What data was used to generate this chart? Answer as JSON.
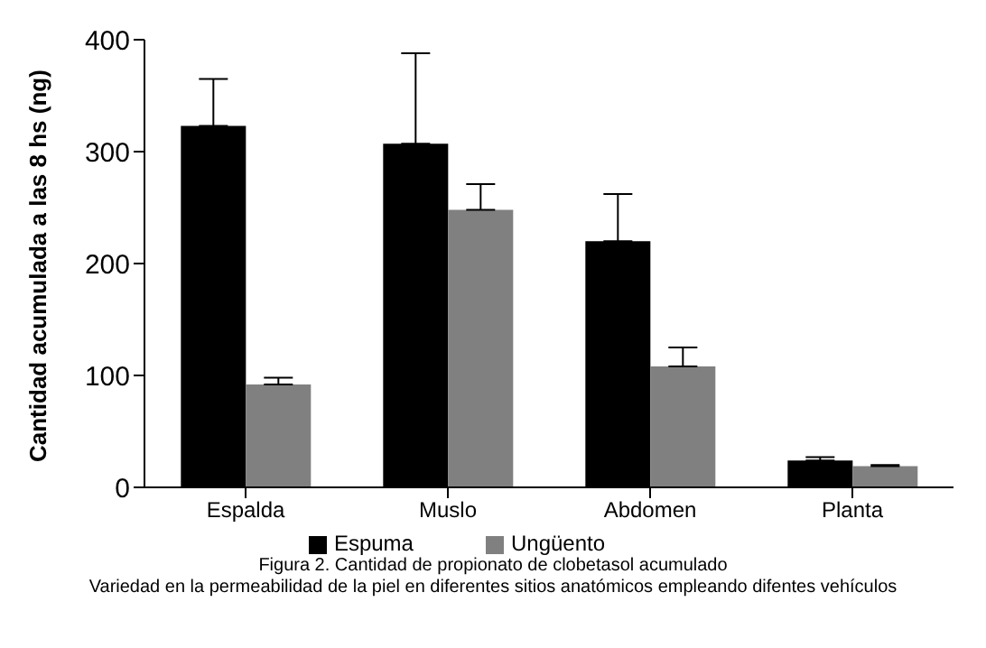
{
  "chart_data": {
    "type": "bar",
    "ylabel": "Cantidad acumulada a las 8 hs (ng)",
    "categories": [
      "Espalda",
      "Muslo",
      "Abdomen",
      "Planta"
    ],
    "series": [
      {
        "name": "Espuma",
        "color": "#000000",
        "values": [
          323,
          307,
          220,
          24
        ],
        "errors": [
          [
            323,
            365
          ],
          [
            307,
            388
          ],
          [
            220,
            262
          ],
          [
            24,
            27
          ]
        ]
      },
      {
        "name": "Ungüento",
        "color": "#808080",
        "values": [
          92,
          248,
          108,
          19
        ],
        "errors": [
          [
            92,
            98
          ],
          [
            248,
            271
          ],
          [
            108,
            125
          ],
          [
            19,
            20
          ]
        ]
      }
    ],
    "ylim": [
      0,
      400
    ],
    "yticks": [
      0,
      100,
      200,
      300,
      400
    ],
    "grid": false,
    "legend": "bottom",
    "annotations": [
      "Figura 2. Cantidad de propionato de clobetasol acumulado",
      "Variedad en la permeabilidad de la piel en diferentes sitios anatómicos empleando difentes vehículos"
    ]
  }
}
